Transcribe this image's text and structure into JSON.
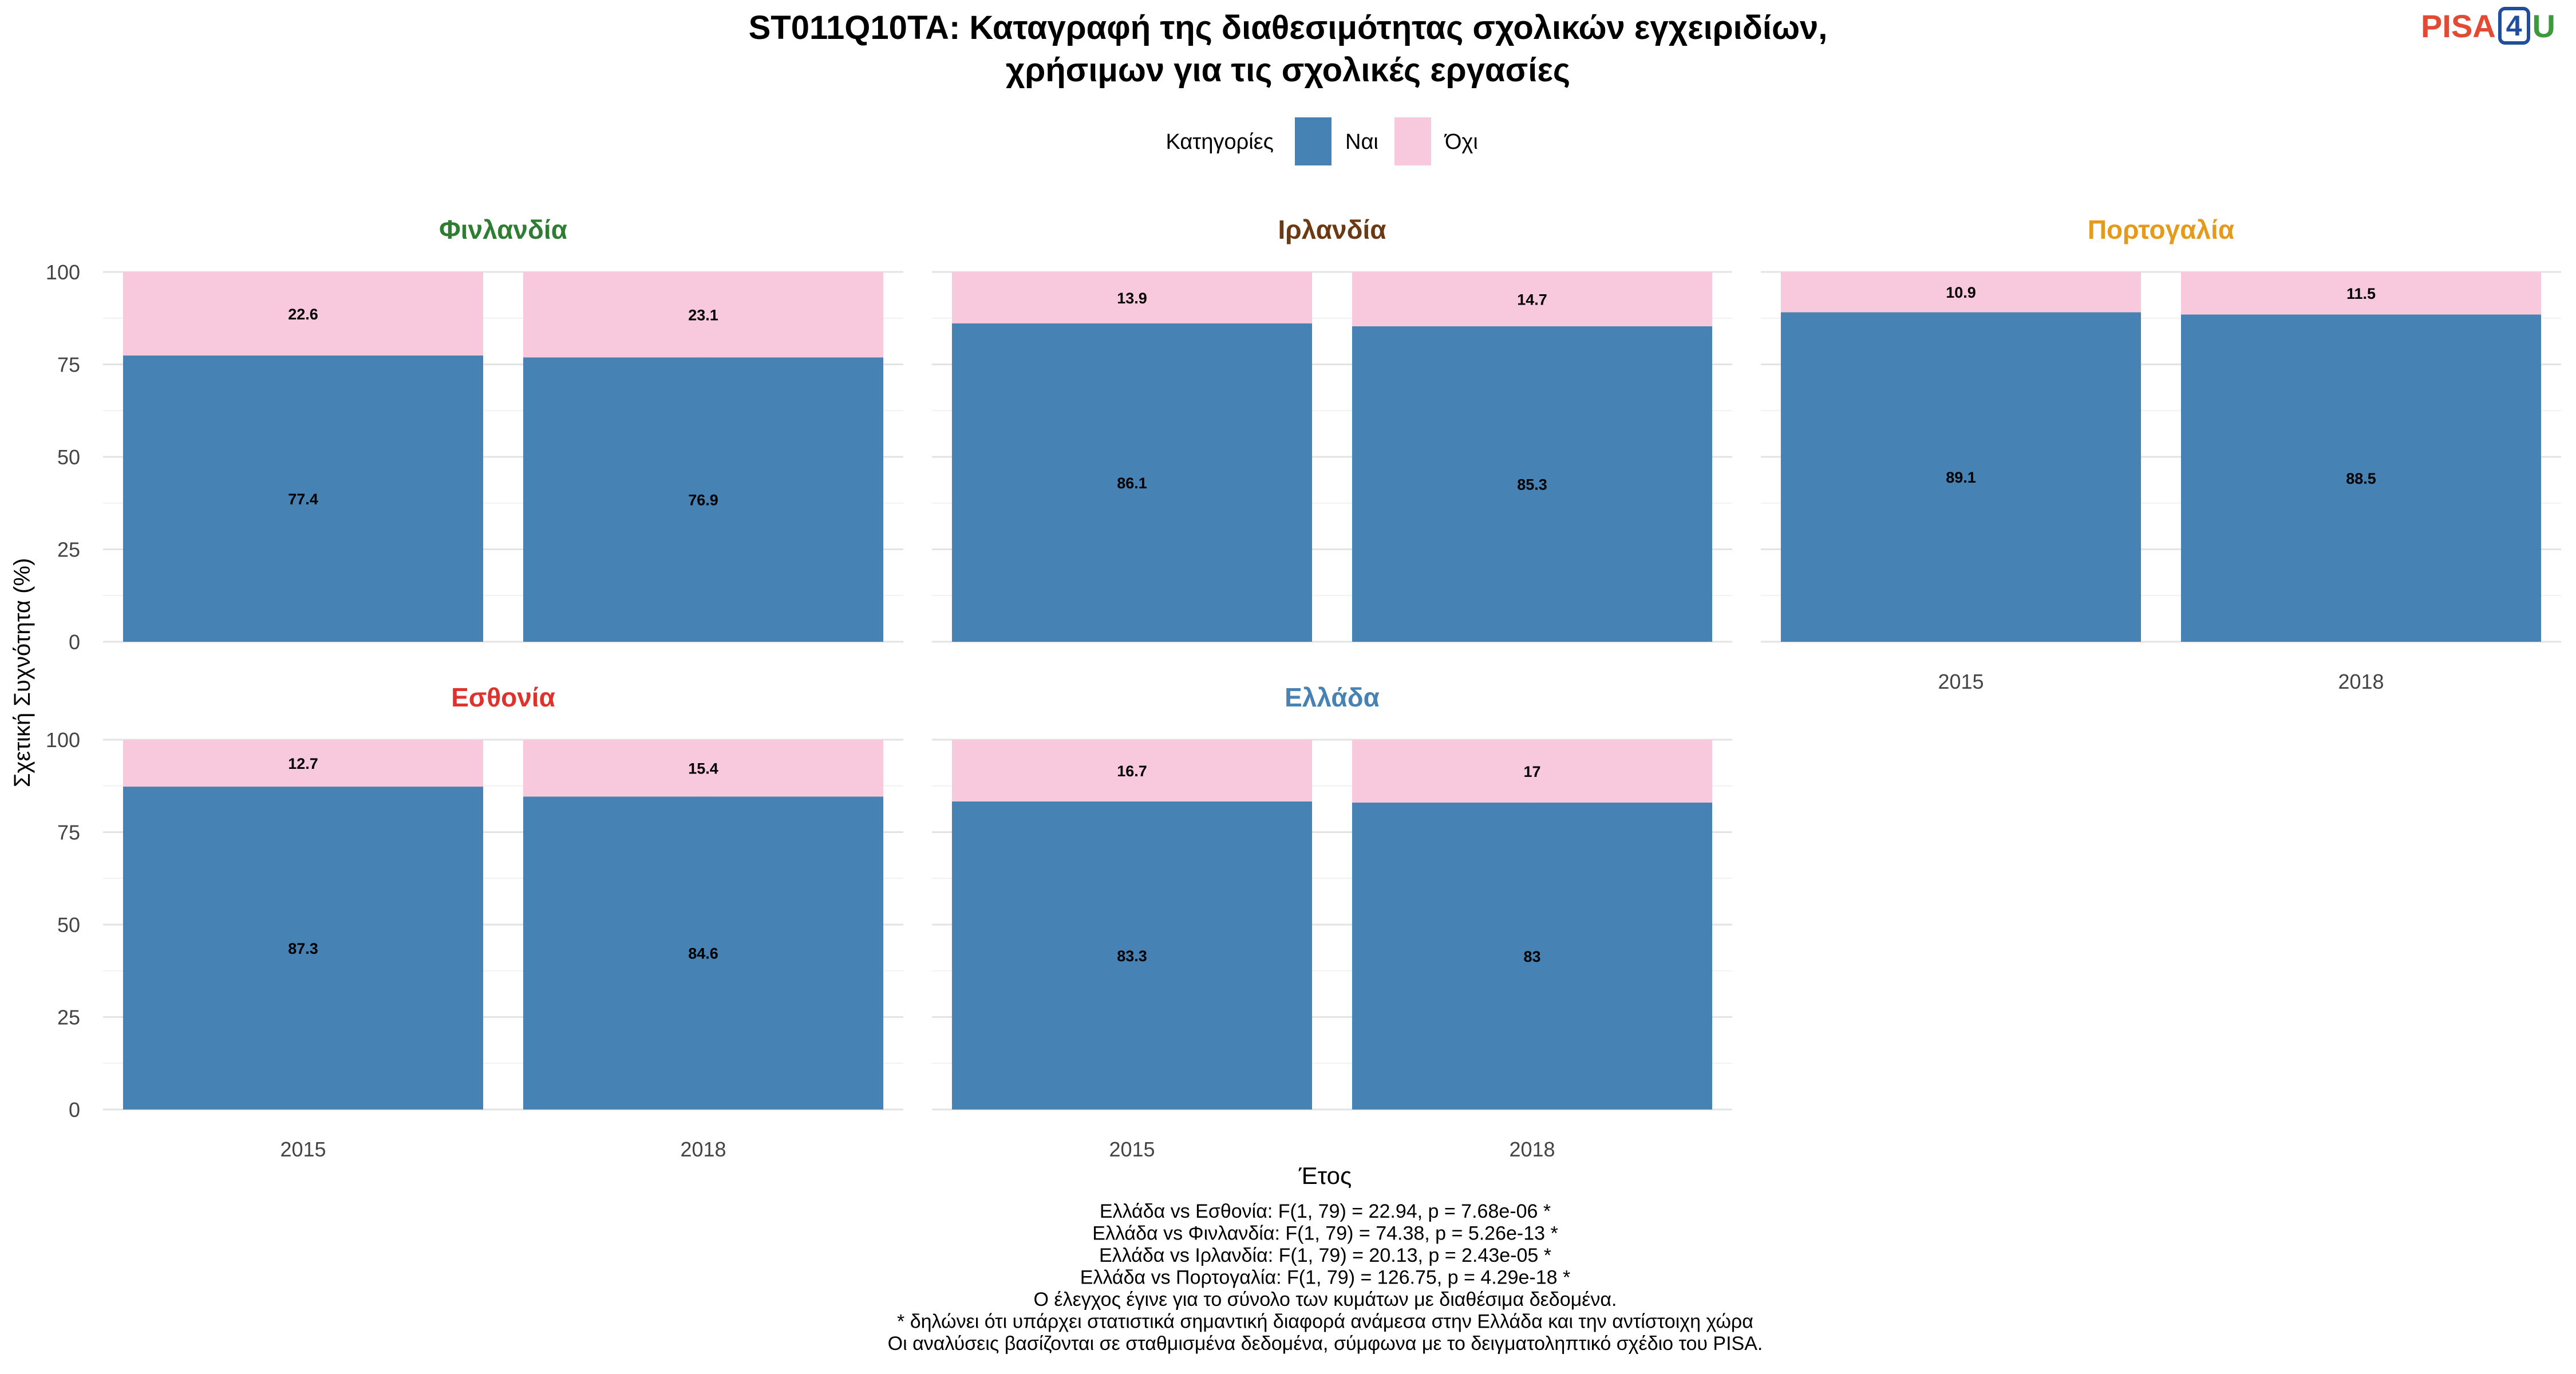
{
  "logo": {
    "part1": "PISA",
    "part2": "4",
    "part3": "U"
  },
  "chart_data": {
    "type": "bar",
    "stacked": true,
    "title_line1": "ST011Q10TA: Καταγραφή της διαθεσιμότητας σχολικών εγχειριδίων,",
    "title_line2": "χρήσιμων για τις σχολικές εργασίες",
    "xlabel": "Έτος",
    "ylabel": "Σχετική Συχνότητα (%)",
    "ylim": [
      0,
      100
    ],
    "yticks": [
      "0",
      "25",
      "50",
      "75",
      "100"
    ],
    "categories": [
      "2015",
      "2018"
    ],
    "legend": {
      "title": "Κατηγορίες",
      "position": "top",
      "items": [
        {
          "name": "Ναι",
          "color": "#4682B4"
        },
        {
          "name": "Όχι",
          "color": "#F8C8DC"
        }
      ]
    },
    "grid": true,
    "panels": [
      {
        "name": "Φινλανδία",
        "color": "#2E7D32",
        "series": [
          {
            "name": "Ναι",
            "values": [
              77.4,
              76.9
            ],
            "labels": [
              "77.4",
              "76.9"
            ]
          },
          {
            "name": "Όχι",
            "values": [
              22.6,
              23.1
            ],
            "labels": [
              "22.6",
              "23.1"
            ]
          }
        ]
      },
      {
        "name": "Ιρλανδία",
        "color": "#6B3A12",
        "series": [
          {
            "name": "Ναι",
            "values": [
              86.1,
              85.3
            ],
            "labels": [
              "86.1",
              "85.3"
            ]
          },
          {
            "name": "Όχι",
            "values": [
              13.9,
              14.7
            ],
            "labels": [
              "13.9",
              "14.7"
            ]
          }
        ]
      },
      {
        "name": "Πορτογαλία",
        "color": "#E59A1B",
        "series": [
          {
            "name": "Ναι",
            "values": [
              89.1,
              88.5
            ],
            "labels": [
              "89.1",
              "88.5"
            ]
          },
          {
            "name": "Όχι",
            "values": [
              10.9,
              11.5
            ],
            "labels": [
              "10.9",
              "11.5"
            ]
          }
        ]
      },
      {
        "name": "Εσθονία",
        "color": "#E0322B",
        "series": [
          {
            "name": "Ναι",
            "values": [
              87.3,
              84.6
            ],
            "labels": [
              "87.3",
              "84.6"
            ]
          },
          {
            "name": "Όχι",
            "values": [
              12.7,
              15.4
            ],
            "labels": [
              "12.7",
              "15.4"
            ]
          }
        ]
      },
      {
        "name": "Ελλάδα",
        "color": "#4682B4",
        "series": [
          {
            "name": "Ναι",
            "values": [
              83.3,
              83.0
            ],
            "labels": [
              "83.3",
              "83"
            ]
          },
          {
            "name": "Όχι",
            "values": [
              16.7,
              17.0
            ],
            "labels": [
              "16.7",
              "17"
            ]
          }
        ]
      }
    ],
    "notes": [
      "Ελλάδα vs Εσθονία: F(1, 79) = 22.94, p = 7.68e-06 *",
      "Ελλάδα vs Φινλανδία: F(1, 79) = 74.38, p = 5.26e-13 *",
      "Ελλάδα vs Ιρλανδία: F(1, 79) = 20.13, p = 2.43e-05 *",
      "Ελλάδα vs Πορτογαλία: F(1, 79) = 126.75, p = 4.29e-18 *",
      "Ο έλεγχος έγινε για το σύνολο των κυμάτων με διαθέσιμα δεδομένα.",
      "* δηλώνει ότι υπάρχει στατιστικά σημαντική διαφορά ανάμεσα στην Ελλάδα και την αντίστοιχη χώρα",
      "Οι αναλύσεις βασίζονται σε σταθμισμένα δεδομένα, σύμφωνα με το δειγματοληπτικό σχέδιο του PISA."
    ]
  }
}
